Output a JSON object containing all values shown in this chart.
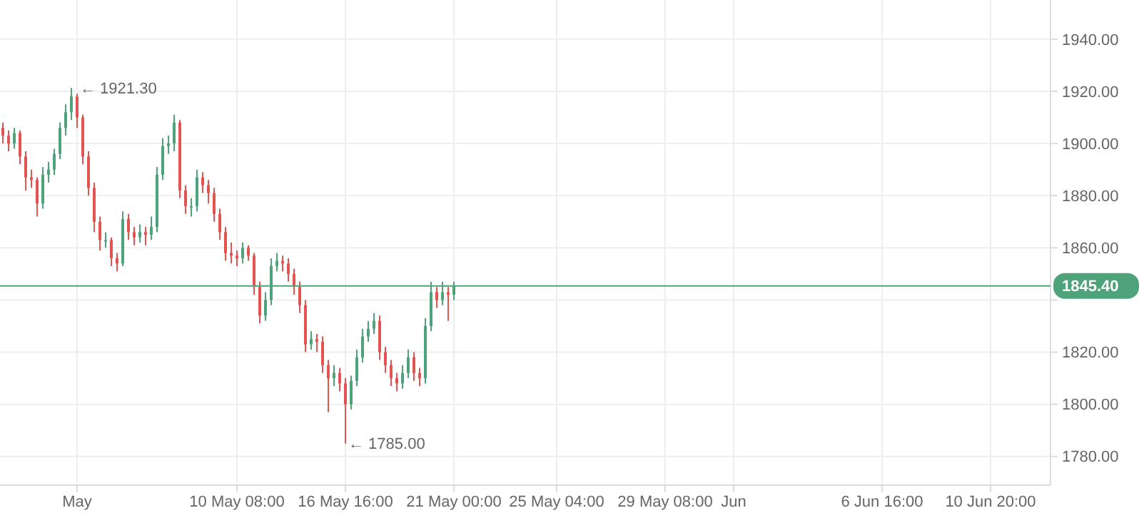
{
  "chart_data": {
    "type": "candlestick",
    "categories": [
      null,
      null,
      null,
      null,
      null,
      null,
      null,
      null,
      null,
      null,
      null,
      null,
      null,
      "May",
      null,
      null,
      null,
      null,
      null,
      null,
      null,
      null,
      null,
      null,
      null,
      null,
      null,
      null,
      null,
      null,
      null,
      null,
      null,
      null,
      null,
      null,
      null,
      null,
      null,
      null,
      null,
      "10 May 08:00",
      null,
      null,
      null,
      null,
      null,
      null,
      null,
      null,
      null,
      null,
      null,
      null,
      null,
      null,
      null,
      null,
      null,
      null,
      "16 May 16:00",
      null,
      null,
      null,
      null,
      null,
      null,
      null,
      null,
      null,
      null,
      null,
      null,
      null,
      null,
      null,
      null,
      null,
      null,
      "21 May 00:00",
      null,
      null,
      null,
      null,
      null,
      null,
      null,
      null,
      null,
      null,
      null,
      null,
      null,
      null,
      null,
      null,
      null,
      "25 May 04:00",
      null,
      null,
      null,
      null,
      null,
      null,
      null,
      null,
      null,
      null,
      null,
      null,
      null,
      null,
      null,
      null,
      null,
      null,
      "29 May 08:00",
      null,
      null,
      null,
      null,
      null,
      null,
      null,
      null,
      null,
      null,
      null,
      "Jun",
      null,
      null,
      null,
      null,
      null,
      null,
      null,
      null,
      null,
      null,
      null,
      null,
      null,
      null,
      null,
      null,
      null,
      null,
      null,
      null,
      null,
      null,
      null,
      null,
      null,
      "6 Jun 16:00",
      null,
      null,
      null,
      null,
      null,
      null,
      null,
      null,
      null,
      null,
      null,
      null,
      null,
      null,
      null,
      null,
      null,
      null,
      "10 Jun 20:00",
      null,
      null,
      null,
      null,
      null,
      null,
      null,
      null,
      null,
      null
    ],
    "ohlc": [
      [
        1906,
        1908,
        1900,
        1903
      ],
      [
        1903,
        1905,
        1897,
        1900
      ],
      [
        1900,
        1906,
        1898,
        1904
      ],
      [
        1904,
        1905,
        1892,
        1895
      ],
      [
        1895,
        1897,
        1882,
        1887
      ],
      [
        1887,
        1890,
        1883,
        1886
      ],
      [
        1886,
        1887,
        1872,
        1877
      ],
      [
        1877,
        1891,
        1875,
        1888
      ],
      [
        1888,
        1893,
        1885,
        1890
      ],
      [
        1890,
        1898,
        1888,
        1896
      ],
      [
        1896,
        1908,
        1894,
        1906
      ],
      [
        1906,
        1915,
        1903,
        1912
      ],
      [
        1912,
        1921.3,
        1909,
        1918
      ],
      [
        1918,
        1919,
        1906,
        1910
      ],
      [
        1910,
        1911,
        1892,
        1895
      ],
      [
        1895,
        1897,
        1880,
        1883
      ],
      [
        1883,
        1885,
        1866,
        1870
      ],
      [
        1870,
        1872,
        1859,
        1863
      ],
      [
        1863,
        1866,
        1860,
        1863
      ],
      [
        1863,
        1864,
        1853,
        1856
      ],
      [
        1856,
        1858,
        1851,
        1854
      ],
      [
        1854,
        1874,
        1853,
        1871
      ],
      [
        1871,
        1873,
        1863,
        1866
      ],
      [
        1866,
        1868,
        1861,
        1864
      ],
      [
        1864,
        1869,
        1862,
        1866
      ],
      [
        1866,
        1868,
        1861,
        1865
      ],
      [
        1865,
        1872,
        1863,
        1868
      ],
      [
        1868,
        1891,
        1866,
        1888
      ],
      [
        1888,
        1902,
        1886,
        1899
      ],
      [
        1899,
        1903,
        1896,
        1900
      ],
      [
        1900,
        1911,
        1897,
        1908
      ],
      [
        1908,
        1909,
        1879,
        1882
      ],
      [
        1882,
        1884,
        1873,
        1876
      ],
      [
        1876,
        1879,
        1872,
        1876
      ],
      [
        1876,
        1890,
        1874,
        1887
      ],
      [
        1887,
        1889,
        1881,
        1884
      ],
      [
        1884,
        1886,
        1877,
        1881
      ],
      [
        1881,
        1883,
        1870,
        1873
      ],
      [
        1873,
        1875,
        1863,
        1866
      ],
      [
        1866,
        1868,
        1855,
        1858
      ],
      [
        1858,
        1862,
        1854,
        1857
      ],
      [
        1857,
        1859,
        1853,
        1856
      ],
      [
        1856,
        1862,
        1854,
        1860
      ],
      [
        1860,
        1861,
        1855,
        1857
      ],
      [
        1857,
        1858,
        1842,
        1845
      ],
      [
        1845,
        1847,
        1831,
        1834
      ],
      [
        1834,
        1843,
        1832,
        1840
      ],
      [
        1840,
        1856,
        1838,
        1853
      ],
      [
        1853,
        1858,
        1851,
        1855
      ],
      [
        1855,
        1857,
        1851,
        1854
      ],
      [
        1854,
        1856,
        1847,
        1850
      ],
      [
        1850,
        1852,
        1842,
        1845
      ],
      [
        1845,
        1847,
        1835,
        1838
      ],
      [
        1838,
        1840,
        1820,
        1823
      ],
      [
        1823,
        1828,
        1821,
        1825
      ],
      [
        1825,
        1827,
        1820,
        1824
      ],
      [
        1824,
        1826,
        1812,
        1815
      ],
      [
        1815,
        1817,
        1797,
        1810
      ],
      [
        1810,
        1815,
        1807,
        1812
      ],
      [
        1812,
        1814,
        1805,
        1808
      ],
      [
        1808,
        1810,
        1785,
        1800
      ],
      [
        1800,
        1811,
        1798,
        1809
      ],
      [
        1809,
        1821,
        1807,
        1818
      ],
      [
        1818,
        1829,
        1816,
        1826
      ],
      [
        1826,
        1832,
        1824,
        1829
      ],
      [
        1829,
        1835,
        1827,
        1832
      ],
      [
        1832,
        1834,
        1817,
        1820
      ],
      [
        1820,
        1822,
        1812,
        1815
      ],
      [
        1815,
        1817,
        1807,
        1810
      ],
      [
        1810,
        1812,
        1805,
        1808
      ],
      [
        1808,
        1815,
        1806,
        1812
      ],
      [
        1812,
        1821,
        1810,
        1818
      ],
      [
        1818,
        1820,
        1809,
        1812
      ],
      [
        1812,
        1814,
        1807,
        1810
      ],
      [
        1810,
        1833,
        1808,
        1830
      ],
      [
        1830,
        1847,
        1828,
        1843
      ],
      [
        1843,
        1845,
        1837,
        1840
      ],
      [
        1840,
        1847,
        1838,
        1843
      ],
      [
        1843,
        1845,
        1832,
        1842
      ],
      [
        1842,
        1847,
        1840,
        1845.4
      ],
      null,
      null,
      null,
      null,
      null,
      null,
      null,
      null,
      null,
      null,
      null,
      null,
      null,
      null,
      null,
      null,
      null,
      null,
      null,
      null,
      null,
      null,
      null,
      null,
      null,
      null,
      null,
      null,
      null,
      null,
      null,
      null,
      null,
      null,
      null,
      null,
      null,
      null,
      null,
      null,
      null,
      null,
      null,
      null,
      null,
      null,
      null,
      null,
      null,
      null,
      null,
      null,
      null,
      null,
      null,
      null,
      null,
      null,
      null,
      null,
      null,
      null,
      null,
      null,
      null,
      null,
      null,
      null,
      null,
      null,
      null,
      null,
      null,
      null,
      null,
      null,
      null,
      null,
      null,
      null,
      null,
      null,
      null,
      null,
      null,
      null,
      null,
      null,
      null,
      null,
      null,
      null,
      null,
      null,
      null,
      null,
      null,
      null,
      null,
      null,
      null,
      null,
      null,
      null
    ],
    "colors": [
      "#e3534f",
      "#e3534f",
      "#4fa37a",
      "#e3534f",
      "#e3534f",
      "#e3534f",
      "#e3534f",
      "#4fa37a",
      "#4fa37a",
      "#4fa37a",
      "#4fa37a",
      "#4fa37a",
      "#4fa37a",
      "#e3534f",
      "#e3534f",
      "#e3534f",
      "#e3534f",
      "#e3534f",
      "#4fa37a",
      "#e3534f",
      "#e3534f",
      "#4fa37a",
      "#e3534f",
      "#e3534f",
      "#4fa37a",
      "#e3534f",
      "#4fa37a",
      "#4fa37a",
      "#4fa37a",
      "#4fa37a",
      "#4fa37a",
      "#e3534f",
      "#e3534f",
      "#4fa37a",
      "#4fa37a",
      "#e3534f",
      "#e3534f",
      "#e3534f",
      "#e3534f",
      "#e3534f",
      "#e3534f",
      "#e3534f",
      "#4fa37a",
      "#e3534f",
      "#e3534f",
      "#e3534f",
      "#4fa37a",
      "#4fa37a",
      "#4fa37a",
      "#e3534f",
      "#e3534f",
      "#e3534f",
      "#e3534f",
      "#e3534f",
      "#4fa37a",
      "#e3534f",
      "#e3534f",
      "#e3534f",
      "#4fa37a",
      "#e3534f",
      "#e3534f",
      "#4fa37a",
      "#4fa37a",
      "#4fa37a",
      "#4fa37a",
      "#4fa37a",
      "#e3534f",
      "#e3534f",
      "#e3534f",
      "#e3534f",
      "#4fa37a",
      "#4fa37a",
      "#e3534f",
      "#e3534f",
      "#4fa37a",
      "#4fa37a",
      "#e3534f",
      "#4fa37a",
      "#e3534f",
      "#4fa37a",
      null,
      null,
      null,
      null,
      null,
      null,
      null,
      null,
      null,
      null,
      null,
      null,
      null,
      null,
      null,
      null,
      null,
      null,
      null,
      null,
      null,
      null,
      null,
      null,
      null,
      null,
      null,
      null,
      null,
      null,
      null,
      null,
      null,
      null,
      null,
      null,
      null,
      null,
      null,
      null,
      null,
      null,
      null,
      null,
      null,
      null,
      null,
      null,
      null,
      null,
      null,
      null,
      null,
      null,
      null,
      null,
      null,
      null,
      null,
      null,
      null,
      null,
      null,
      null,
      null,
      null,
      null,
      null,
      null,
      null,
      null,
      null,
      null,
      null,
      null,
      null,
      null,
      null,
      null,
      null,
      null,
      null,
      null,
      null,
      null,
      null,
      null,
      null,
      null,
      null,
      null,
      null,
      null,
      null,
      null,
      null,
      null,
      null,
      null,
      null,
      null,
      null,
      null,
      null
    ],
    "ylim": [
      1769,
      1955
    ],
    "yticks": [
      {
        "value": 1780,
        "label": "1780.00"
      },
      {
        "value": 1800,
        "label": "1800.00"
      },
      {
        "value": 1820,
        "label": "1820.00"
      },
      {
        "value": 1840,
        "label": null
      },
      {
        "value": 1860,
        "label": "1860.00"
      },
      {
        "value": 1880,
        "label": "1880.00"
      },
      {
        "value": 1900,
        "label": "1900.00"
      },
      {
        "value": 1920,
        "label": "1920.00"
      },
      {
        "value": 1940,
        "label": "1940.00"
      }
    ],
    "grid": true,
    "ref_lines": [
      {
        "axis": "y",
        "value": 1845.4,
        "label": "1845.40",
        "color": "#4fa37a"
      }
    ],
    "annotations": [
      {
        "text": "← 1921.30",
        "x": "May",
        "y": 1921.3
      },
      {
        "text": "← 1785.00",
        "x": "16 May 16:00",
        "y": 1785
      }
    ]
  }
}
